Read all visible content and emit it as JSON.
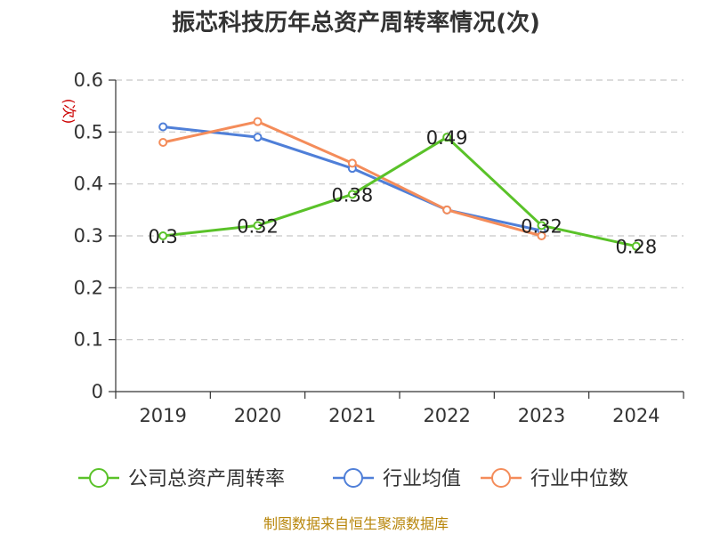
{
  "chart_data": {
    "type": "line",
    "title": "振芯科技历年总资产周转率情况(次)",
    "ylabel": "(次)",
    "xlabel": "",
    "categories": [
      "2019",
      "2020",
      "2021",
      "2022",
      "2023",
      "2024"
    ],
    "ylim": [
      0,
      0.6
    ],
    "yticks": [
      "0",
      "0.1",
      "0.2",
      "0.3",
      "0.4",
      "0.5",
      "0.6"
    ],
    "grid": true,
    "legend_position": "bottom",
    "series": [
      {
        "name": "公司总资产周转率",
        "color": "#5ac229",
        "values": [
          0.3,
          0.32,
          0.38,
          0.49,
          0.32,
          0.28
        ],
        "labels": [
          "0.3",
          "0.32",
          "0.38",
          "0.49",
          "0.32",
          "0.28"
        ]
      },
      {
        "name": "行业均值",
        "color": "#4f7fd8",
        "values": [
          0.51,
          0.49,
          0.43,
          0.35,
          0.31,
          null
        ]
      },
      {
        "name": "行业中位数",
        "color": "#f48c5a",
        "values": [
          0.48,
          0.52,
          0.44,
          0.35,
          0.3,
          null
        ]
      }
    ]
  },
  "source": "制图数据来自恒生聚源数据库"
}
